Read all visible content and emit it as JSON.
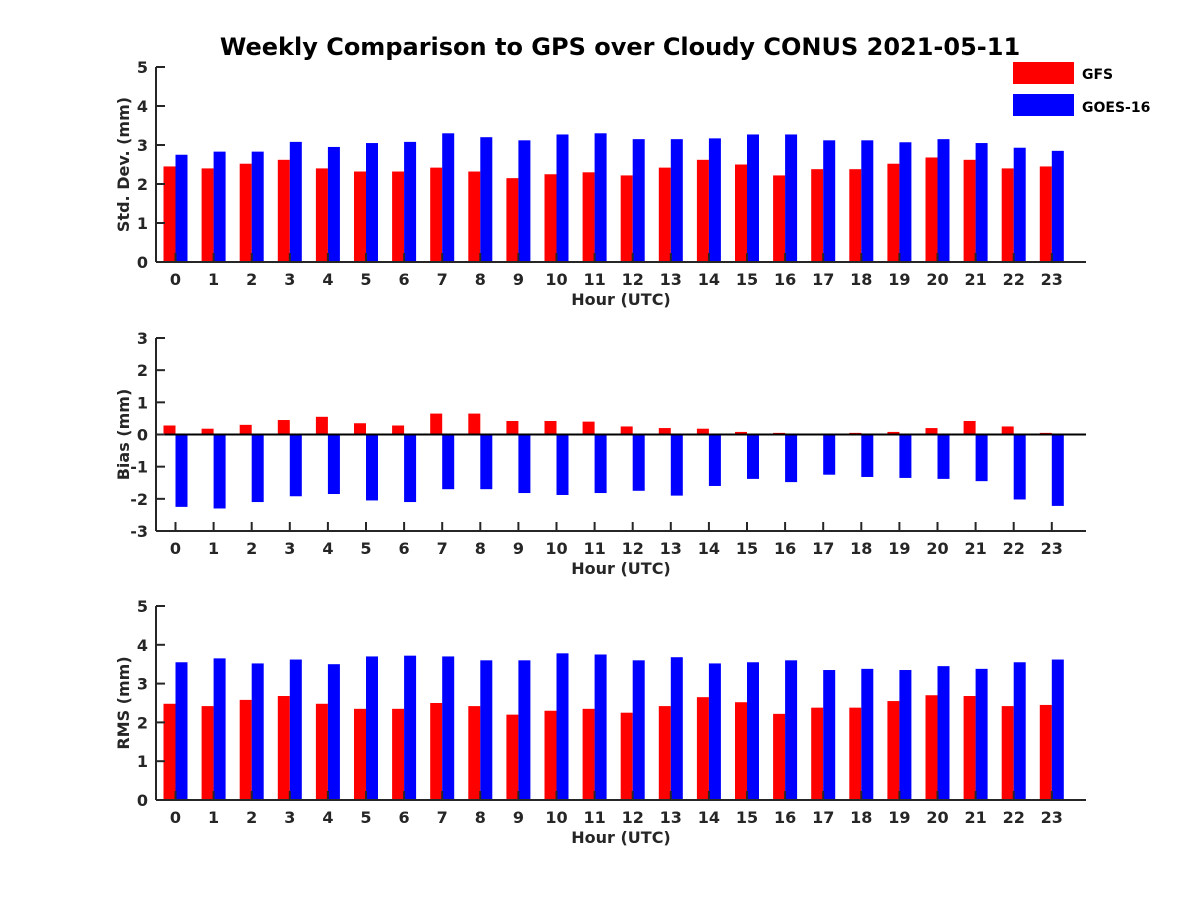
{
  "title": "Weekly Comparison to GPS over Cloudy CONUS 2021-05-11",
  "legend": {
    "placement": "top-right",
    "items": [
      {
        "name": "GFS",
        "color": "#ff0000"
      },
      {
        "name": "GOES-16",
        "color": "#0000ff"
      }
    ]
  },
  "chart_data": [
    {
      "type": "bar",
      "ylabel": "Std. Dev. (mm)",
      "xlabel": "Hour (UTC)",
      "ylim": [
        0,
        5
      ],
      "yticks": [
        0,
        1,
        2,
        3,
        4,
        5
      ],
      "categories": [
        "0",
        "1",
        "2",
        "3",
        "4",
        "5",
        "6",
        "7",
        "8",
        "9",
        "10",
        "11",
        "12",
        "13",
        "14",
        "15",
        "16",
        "17",
        "18",
        "19",
        "20",
        "21",
        "22",
        "23"
      ],
      "series": [
        {
          "name": "GFS",
          "color": "#ff0000",
          "values": [
            2.45,
            2.4,
            2.52,
            2.62,
            2.4,
            2.32,
            2.32,
            2.42,
            2.32,
            2.15,
            2.25,
            2.3,
            2.22,
            2.42,
            2.62,
            2.5,
            2.22,
            2.38,
            2.38,
            2.52,
            2.68,
            2.62,
            2.4,
            2.45
          ]
        },
        {
          "name": "GOES-16",
          "color": "#0000ff",
          "values": [
            2.75,
            2.83,
            2.83,
            3.08,
            2.95,
            3.05,
            3.08,
            3.3,
            3.2,
            3.12,
            3.27,
            3.3,
            3.15,
            3.15,
            3.17,
            3.27,
            3.27,
            3.12,
            3.12,
            3.07,
            3.15,
            3.05,
            2.93,
            2.85
          ]
        }
      ]
    },
    {
      "type": "bar",
      "ylabel": "Bias (mm)",
      "xlabel": "Hour (UTC)",
      "ylim": [
        -3,
        3
      ],
      "yticks": [
        -3,
        -2,
        -1,
        0,
        1,
        2,
        3
      ],
      "zero_line": true,
      "categories": [
        "0",
        "1",
        "2",
        "3",
        "4",
        "5",
        "6",
        "7",
        "8",
        "9",
        "10",
        "11",
        "12",
        "13",
        "14",
        "15",
        "16",
        "17",
        "18",
        "19",
        "20",
        "21",
        "22",
        "23"
      ],
      "series": [
        {
          "name": "GFS",
          "color": "#ff0000",
          "values": [
            0.28,
            0.18,
            0.3,
            0.45,
            0.55,
            0.35,
            0.28,
            0.65,
            0.65,
            0.42,
            0.42,
            0.4,
            0.25,
            0.2,
            0.18,
            0.08,
            0.05,
            0.0,
            0.05,
            0.08,
            0.2,
            0.42,
            0.25,
            0.05
          ]
        },
        {
          "name": "GOES-16",
          "color": "#0000ff",
          "values": [
            -2.25,
            -2.3,
            -2.1,
            -1.92,
            -1.85,
            -2.05,
            -2.1,
            -1.7,
            -1.7,
            -1.82,
            -1.88,
            -1.82,
            -1.75,
            -1.9,
            -1.6,
            -1.38,
            -1.48,
            -1.25,
            -1.32,
            -1.35,
            -1.38,
            -1.45,
            -2.02,
            -2.22
          ]
        }
      ]
    },
    {
      "type": "bar",
      "ylabel": "RMS (mm)",
      "xlabel": "Hour (UTC)",
      "ylim": [
        0,
        5
      ],
      "yticks": [
        0,
        1,
        2,
        3,
        4,
        5
      ],
      "categories": [
        "0",
        "1",
        "2",
        "3",
        "4",
        "5",
        "6",
        "7",
        "8",
        "9",
        "10",
        "11",
        "12",
        "13",
        "14",
        "15",
        "16",
        "17",
        "18",
        "19",
        "20",
        "21",
        "22",
        "23"
      ],
      "series": [
        {
          "name": "GFS",
          "color": "#ff0000",
          "values": [
            2.48,
            2.42,
            2.58,
            2.68,
            2.48,
            2.35,
            2.35,
            2.5,
            2.42,
            2.2,
            2.3,
            2.35,
            2.25,
            2.42,
            2.65,
            2.52,
            2.22,
            2.38,
            2.38,
            2.55,
            2.7,
            2.68,
            2.42,
            2.45
          ]
        },
        {
          "name": "GOES-16",
          "color": "#0000ff",
          "values": [
            3.55,
            3.65,
            3.52,
            3.62,
            3.5,
            3.7,
            3.72,
            3.7,
            3.6,
            3.6,
            3.78,
            3.75,
            3.6,
            3.68,
            3.52,
            3.55,
            3.6,
            3.35,
            3.38,
            3.35,
            3.45,
            3.38,
            3.55,
            3.62
          ]
        }
      ]
    }
  ]
}
